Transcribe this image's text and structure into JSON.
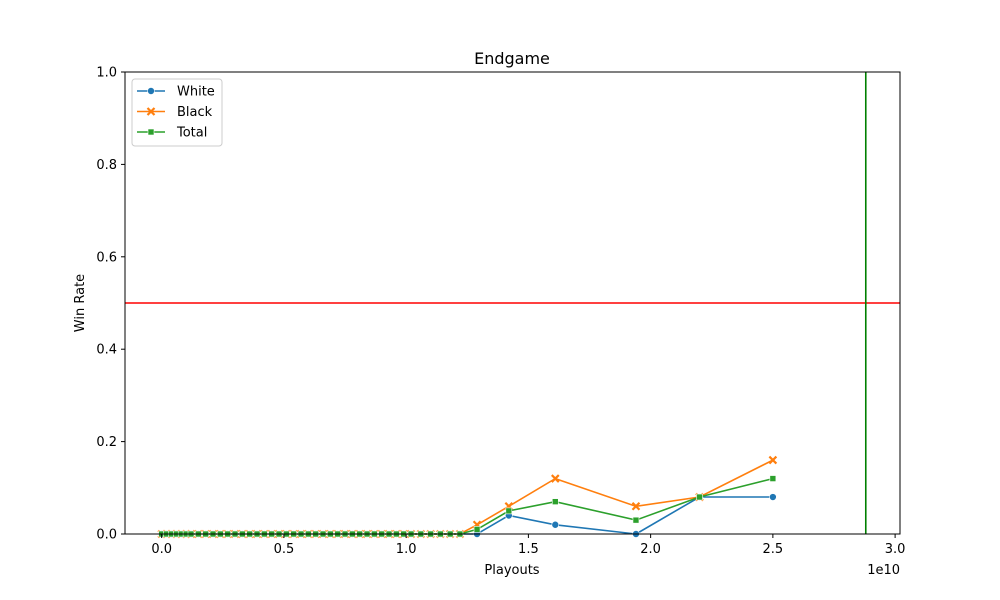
{
  "chart_data": {
    "type": "line",
    "title": "Endgame",
    "xlabel": "Playouts",
    "ylabel": "Win Rate",
    "x_offset_label": "1e10",
    "xlim": [
      -0.15,
      3.02
    ],
    "ylim": [
      0,
      1
    ],
    "x_ticks": [
      0.0,
      0.5,
      1.0,
      1.5,
      2.0,
      2.5,
      3.0
    ],
    "x_tick_labels": [
      "0.0",
      "0.5",
      "1.0",
      "1.5",
      "2.0",
      "2.5",
      "3.0"
    ],
    "y_ticks": [
      0.0,
      0.2,
      0.4,
      0.6,
      0.8,
      1.0
    ],
    "y_tick_labels": [
      "0.0",
      "0.2",
      "0.4",
      "0.6",
      "0.8",
      "1.0"
    ],
    "grid": false,
    "legend_placement": "upper-left",
    "x": [
      0.0,
      0.02,
      0.04,
      0.06,
      0.08,
      0.1,
      0.12,
      0.15,
      0.18,
      0.21,
      0.24,
      0.27,
      0.3,
      0.33,
      0.36,
      0.39,
      0.42,
      0.45,
      0.48,
      0.51,
      0.54,
      0.57,
      0.6,
      0.63,
      0.66,
      0.69,
      0.72,
      0.75,
      0.78,
      0.81,
      0.84,
      0.87,
      0.9,
      0.93,
      0.96,
      0.99,
      1.02,
      1.06,
      1.1,
      1.14,
      1.18,
      1.22,
      1.29,
      1.42,
      1.61,
      1.94,
      2.2,
      2.5
    ],
    "series": [
      {
        "name": "White",
        "color": "#1f77b4",
        "marker": "circle",
        "values": [
          0,
          0,
          0,
          0,
          0,
          0,
          0,
          0,
          0,
          0,
          0,
          0,
          0,
          0,
          0,
          0,
          0,
          0,
          0,
          0,
          0,
          0,
          0,
          0,
          0,
          0,
          0,
          0,
          0,
          0,
          0,
          0,
          0,
          0,
          0,
          0,
          0,
          0,
          0,
          0,
          0,
          0,
          0,
          0.04,
          0.02,
          0.0,
          0.08,
          0.08
        ]
      },
      {
        "name": "Black",
        "color": "#ff7f0e",
        "marker": "x",
        "values": [
          0,
          0,
          0,
          0,
          0,
          0,
          0,
          0,
          0,
          0,
          0,
          0,
          0,
          0,
          0,
          0,
          0,
          0,
          0,
          0,
          0,
          0,
          0,
          0,
          0,
          0,
          0,
          0,
          0,
          0,
          0,
          0,
          0,
          0,
          0,
          0,
          0,
          0,
          0,
          0,
          0,
          0,
          0.02,
          0.06,
          0.12,
          0.06,
          0.08,
          0.16
        ]
      },
      {
        "name": "Total",
        "color": "#2ca02c",
        "marker": "square",
        "values": [
          0,
          0,
          0,
          0,
          0,
          0,
          0,
          0,
          0,
          0,
          0,
          0,
          0,
          0,
          0,
          0,
          0,
          0,
          0,
          0,
          0,
          0,
          0,
          0,
          0,
          0,
          0,
          0,
          0,
          0,
          0,
          0,
          0,
          0,
          0,
          0,
          0,
          0,
          0,
          0,
          0,
          0,
          0.01,
          0.05,
          0.07,
          0.03,
          0.08,
          0.12
        ]
      }
    ],
    "reference_lines": [
      {
        "orientation": "horizontal",
        "value": 0.5,
        "color": "#ff0000"
      },
      {
        "orientation": "vertical",
        "value": 2.88,
        "color": "#008000"
      }
    ]
  }
}
